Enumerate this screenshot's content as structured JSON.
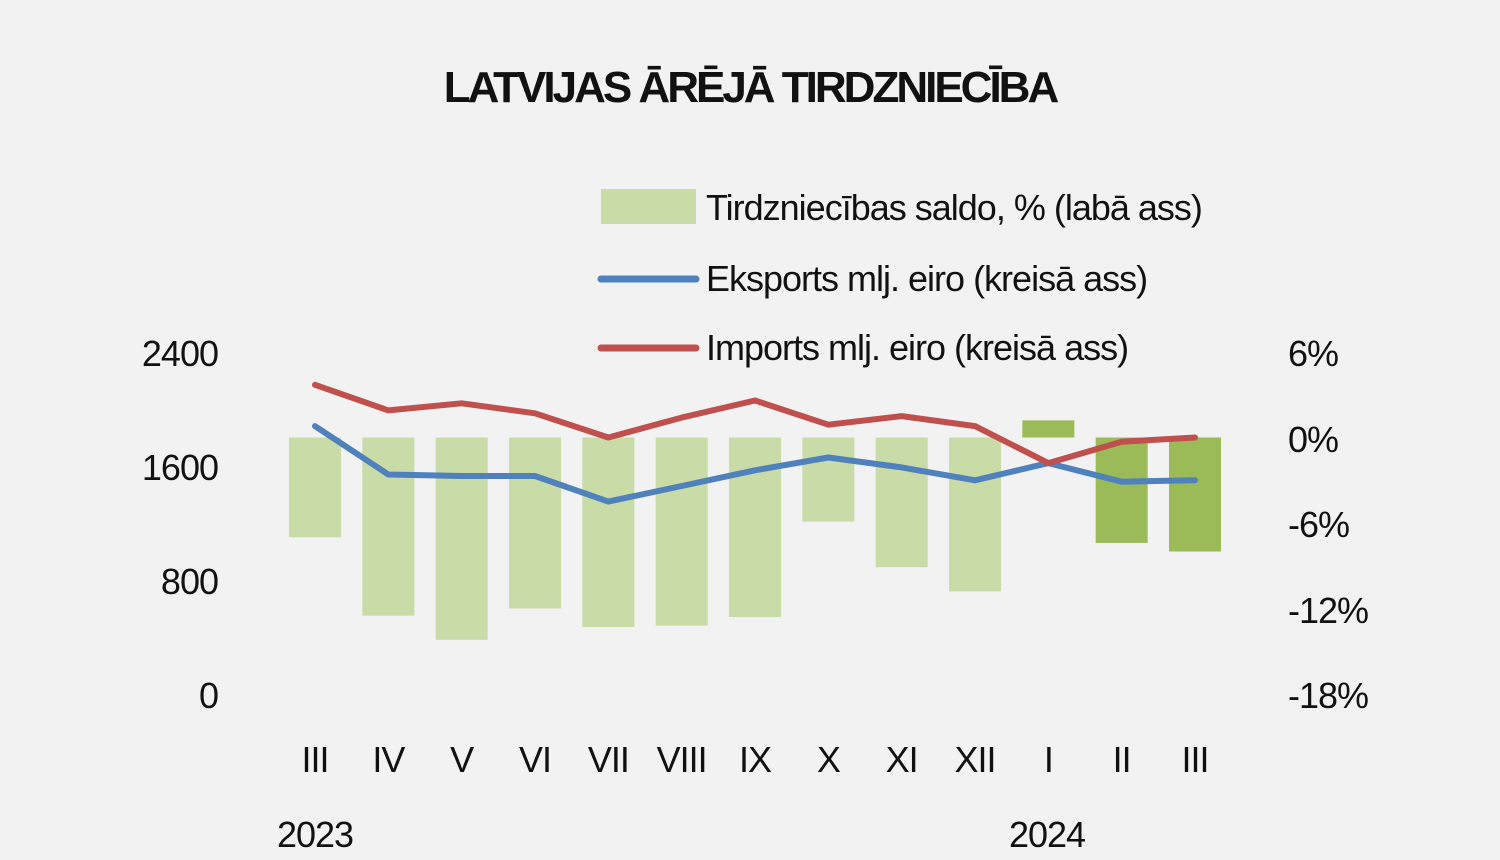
{
  "chart_data": {
    "type": "bar+line",
    "title": "LATVIJAS ĀRĒJĀ TIRDZNIECĪBA",
    "categories": [
      "III",
      "IV",
      "V",
      "VI",
      "VII",
      "VIII",
      "IX",
      "X",
      "XI",
      "XII",
      "I",
      "II",
      "III"
    ],
    "years": [
      {
        "label": "2023",
        "category_index": 0
      },
      {
        "label": "2024",
        "category_index": 10
      }
    ],
    "left_axis": {
      "ticks": [
        "0",
        "800",
        "1600",
        "2400"
      ],
      "ylim": [
        0,
        2400
      ]
    },
    "right_axis": {
      "ticks": [
        "-18%",
        "-12%",
        "-6%",
        "0%",
        "6%"
      ],
      "ylim": [
        -18,
        6
      ]
    },
    "series": [
      {
        "name": "Tirdzniecības saldo, % (labā ass)",
        "type": "bar",
        "axis": "right",
        "values": [
          -7.0,
          -12.5,
          -14.2,
          -12.0,
          -13.3,
          -13.2,
          -12.6,
          -5.9,
          -9.1,
          -10.8,
          1.2,
          -7.4,
          -8.0
        ],
        "colors": [
          "#c9dba6",
          "#c9dba6",
          "#c9dba6",
          "#c9dba6",
          "#c9dba6",
          "#c9dba6",
          "#c9dba6",
          "#c9dba6",
          "#c9dba6",
          "#c9dba6",
          "#9bbb59",
          "#9bbb59",
          "#9bbb59"
        ]
      },
      {
        "name": "Eksports mlj. eiro (kreisā ass)",
        "type": "line",
        "axis": "left",
        "color": "#4f81bd",
        "values": [
          1880,
          1540,
          1530,
          1530,
          1350,
          1460,
          1570,
          1660,
          1590,
          1500,
          1620,
          1490,
          1500
        ]
      },
      {
        "name": "Imports mlj. eiro (kreisā ass)",
        "type": "line",
        "axis": "left",
        "color": "#c0504d",
        "values": [
          2170,
          1990,
          2040,
          1970,
          1800,
          1940,
          2060,
          1890,
          1950,
          1880,
          1620,
          1770,
          1800
        ]
      }
    ],
    "legend": "top-center"
  }
}
